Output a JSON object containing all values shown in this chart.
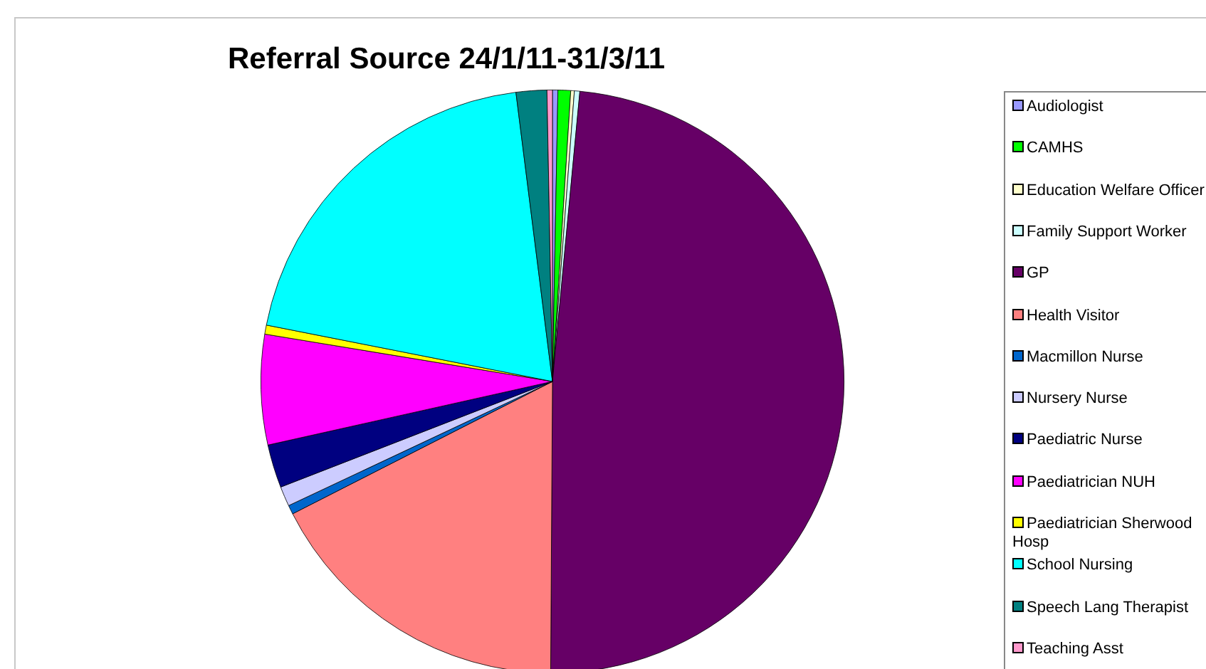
{
  "chart_data": {
    "type": "pie",
    "title": "Referral Source 24/1/11-31/3/11",
    "categories": [
      "Audiologist",
      "CAMHS",
      "Education Welfare Officer",
      "Family Support Worker",
      "GP",
      "Health Visitor",
      "Macmillon Nurse",
      "Nursery Nurse",
      "Paediatric Nurse",
      "Paediatrician NUH",
      "Paediatrician Sherwood Hosp",
      "School Nursing",
      "Speech Lang Therapist",
      "Teaching Asst"
    ],
    "values": [
      0.3,
      0.7,
      0.2,
      0.3,
      48.6,
      17.4,
      0.5,
      1.1,
      2.4,
      6.1,
      0.5,
      19.9,
      1.7,
      0.3
    ],
    "colors": [
      "#9999ff",
      "#00ff00",
      "#ffffcc",
      "#ccffff",
      "#660066",
      "#ff8080",
      "#0066cc",
      "#ccccff",
      "#000080",
      "#ff00ff",
      "#ffff00",
      "#00ffff",
      "#008080",
      "#ff99cc"
    ],
    "legend": "right"
  }
}
